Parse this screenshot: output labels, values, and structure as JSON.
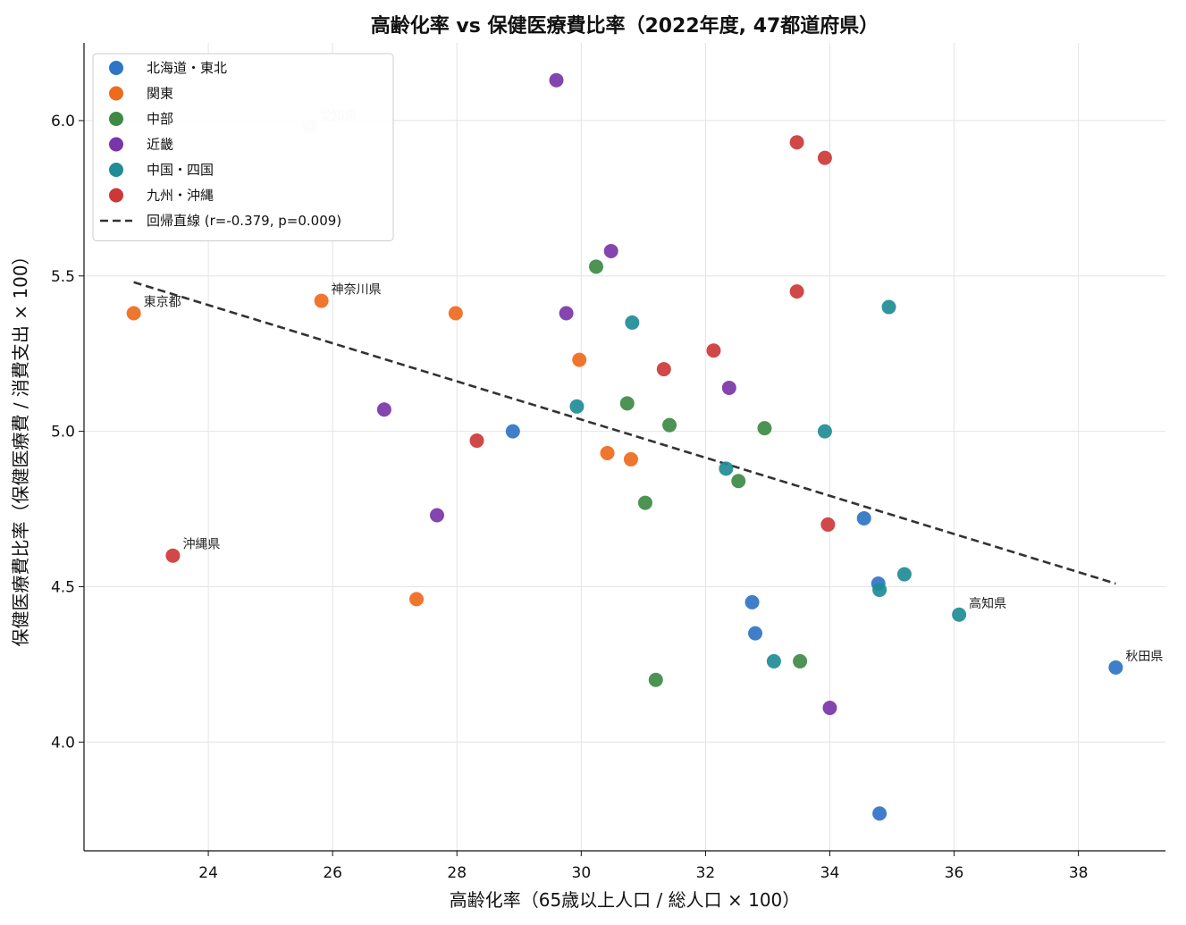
{
  "chart_data": {
    "type": "scatter",
    "title": "高齢化率 vs 保健医療費比率（2022年度, 47都道府県）",
    "xlabel": "高齢化率（65歳以上人口 / 総人口 × 100）",
    "ylabel": "保健医療費比率（保健医療費 / 消費支出 × 100）",
    "xlim": [
      22.0,
      39.4
    ],
    "ylim": [
      3.65,
      6.25
    ],
    "xticks": [
      24,
      26,
      28,
      30,
      32,
      34,
      36,
      38
    ],
    "yticks": [
      4.0,
      4.5,
      5.0,
      5.5,
      6.0
    ],
    "xtick_labels": [
      "24",
      "26",
      "28",
      "30",
      "32",
      "34",
      "36",
      "38"
    ],
    "ytick_labels": [
      "4.0",
      "4.5",
      "5.0",
      "5.5",
      "6.0"
    ],
    "grid": true,
    "legend_position": "top-left",
    "series": [
      {
        "name": "北海道・東北",
        "color": "#2f74c6",
        "points": [
          {
            "x": 28.9,
            "y": 5.0
          },
          {
            "x": 34.55,
            "y": 4.72
          },
          {
            "x": 34.78,
            "y": 4.51
          },
          {
            "x": 32.75,
            "y": 4.45
          },
          {
            "x": 32.8,
            "y": 4.35
          },
          {
            "x": 38.6,
            "y": 4.24
          },
          {
            "x": 34.8,
            "y": 3.77
          }
        ]
      },
      {
        "name": "関東",
        "color": "#ee6a1c",
        "points": [
          {
            "x": 22.8,
            "y": 5.38
          },
          {
            "x": 25.82,
            "y": 5.42
          },
          {
            "x": 27.98,
            "y": 5.38
          },
          {
            "x": 29.97,
            "y": 5.23
          },
          {
            "x": 30.42,
            "y": 4.93
          },
          {
            "x": 30.8,
            "y": 4.91
          },
          {
            "x": 27.35,
            "y": 4.46
          }
        ]
      },
      {
        "name": "中部",
        "color": "#3e8a45",
        "points": [
          {
            "x": 25.63,
            "y": 5.98
          },
          {
            "x": 30.24,
            "y": 5.53
          },
          {
            "x": 30.74,
            "y": 5.09
          },
          {
            "x": 31.42,
            "y": 5.02
          },
          {
            "x": 32.95,
            "y": 5.01
          },
          {
            "x": 32.53,
            "y": 4.84
          },
          {
            "x": 31.03,
            "y": 4.77
          },
          {
            "x": 33.52,
            "y": 4.26
          },
          {
            "x": 31.2,
            "y": 4.2
          }
        ]
      },
      {
        "name": "近畿",
        "color": "#7a35a8",
        "points": [
          {
            "x": 29.6,
            "y": 6.13
          },
          {
            "x": 30.48,
            "y": 5.58
          },
          {
            "x": 29.76,
            "y": 5.38
          },
          {
            "x": 32.38,
            "y": 5.14
          },
          {
            "x": 26.83,
            "y": 5.07
          },
          {
            "x": 27.68,
            "y": 4.73
          },
          {
            "x": 34.0,
            "y": 4.11
          }
        ]
      },
      {
        "name": "中国・四国",
        "color": "#1f8c96",
        "points": [
          {
            "x": 34.95,
            "y": 5.4
          },
          {
            "x": 30.82,
            "y": 5.35
          },
          {
            "x": 29.93,
            "y": 5.08
          },
          {
            "x": 33.92,
            "y": 5.0
          },
          {
            "x": 32.33,
            "y": 4.88
          },
          {
            "x": 35.2,
            "y": 4.54
          },
          {
            "x": 34.8,
            "y": 4.49
          },
          {
            "x": 36.08,
            "y": 4.41
          },
          {
            "x": 33.1,
            "y": 4.26
          }
        ]
      },
      {
        "name": "九州・沖縄",
        "color": "#cc3838",
        "points": [
          {
            "x": 33.47,
            "y": 5.93
          },
          {
            "x": 33.92,
            "y": 5.88
          },
          {
            "x": 33.47,
            "y": 5.45
          },
          {
            "x": 32.13,
            "y": 5.26
          },
          {
            "x": 31.33,
            "y": 5.2
          },
          {
            "x": 28.32,
            "y": 4.97
          },
          {
            "x": 33.97,
            "y": 4.7
          },
          {
            "x": 23.43,
            "y": 4.6
          }
        ]
      }
    ],
    "regression": {
      "name": "回帰直線 (r=-0.379, p=0.009)",
      "color": "#333333",
      "x": [
        22.8,
        38.6
      ],
      "y": [
        5.48,
        4.51
      ]
    },
    "annotations": [
      {
        "text": "愛知県",
        "x": 25.63,
        "y": 5.98,
        "faded": true
      },
      {
        "text": "東京都",
        "x": 22.8,
        "y": 5.38,
        "faded": false
      },
      {
        "text": "神奈川県",
        "x": 25.82,
        "y": 5.42,
        "faded": false
      },
      {
        "text": "沖縄県",
        "x": 23.43,
        "y": 4.6,
        "faded": false
      },
      {
        "text": "高知県",
        "x": 36.08,
        "y": 4.41,
        "faded": false
      },
      {
        "text": "秋田県",
        "x": 38.6,
        "y": 4.24,
        "faded": false
      }
    ]
  }
}
